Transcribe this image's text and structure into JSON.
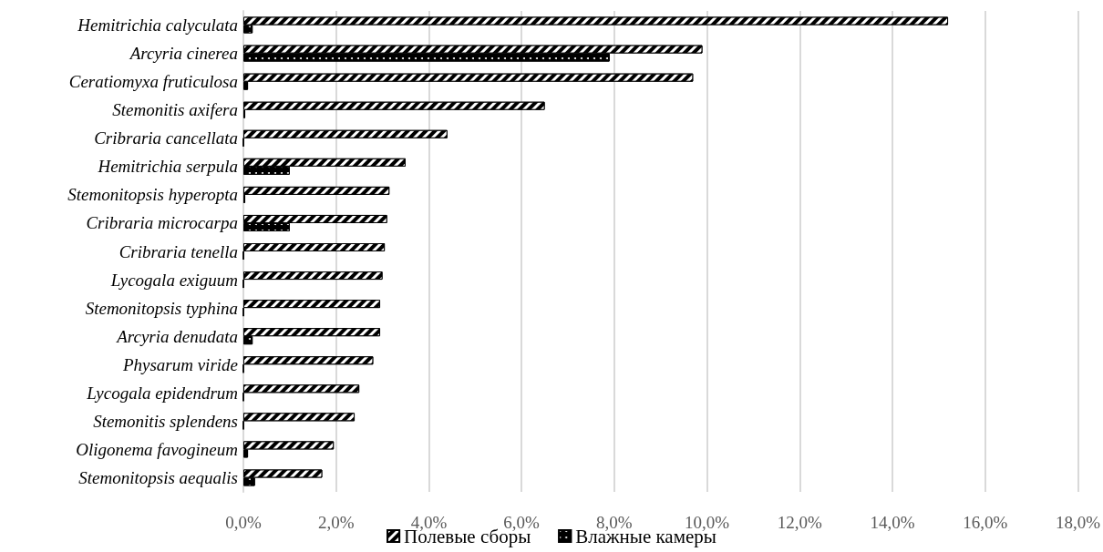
{
  "chart_data": {
    "type": "bar",
    "orientation": "horizontal",
    "categories": [
      "Hemitrichia calyculata",
      "Arcyria cinerea",
      "Ceratiomyxa fruticulosa",
      "Stemonitis axifera",
      "Cribraria cancellata",
      "Hemitrichia serpula",
      "Stemonitopsis hyperopta",
      "Cribraria microcarpa",
      "Cribraria tenella",
      "Lycogala exiguum",
      "Stemonitopsis typhina",
      "Arcyria denudata",
      "Physarum viride",
      "Lycogala epidendrum",
      "Stemonitis splendens",
      "Oligonema favogineum",
      "Stemonitopsis aequalis"
    ],
    "series": [
      {
        "name": "Полевые сборы",
        "color": "#000000",
        "values": [
          15.2,
          9.9,
          9.7,
          6.5,
          4.4,
          3.5,
          3.15,
          3.1,
          3.05,
          3.0,
          2.95,
          2.95,
          2.8,
          2.5,
          2.4,
          1.95,
          1.7
        ]
      },
      {
        "name": "Влажные камеры",
        "color": "#000000",
        "values": [
          0.2,
          7.9,
          0.1,
          0.04,
          0,
          1.0,
          0.04,
          1.0,
          0,
          0,
          0,
          0.2,
          0,
          0,
          0,
          0.1,
          0.25
        ]
      }
    ],
    "xlim": [
      0,
      18
    ],
    "xticks": [
      {
        "value": 0,
        "label": "0,0%"
      },
      {
        "value": 2,
        "label": "2,0%"
      },
      {
        "value": 4,
        "label": "4,0%"
      },
      {
        "value": 6,
        "label": "6,0%"
      },
      {
        "value": 8,
        "label": "8,0%"
      },
      {
        "value": 10,
        "label": "10,0%"
      },
      {
        "value": 12,
        "label": "12,0%"
      },
      {
        "value": 14,
        "label": "14,0%"
      },
      {
        "value": 16,
        "label": "16,0%"
      },
      {
        "value": 18,
        "label": "18,0%"
      }
    ],
    "grid": "x",
    "legend": "bottom"
  }
}
